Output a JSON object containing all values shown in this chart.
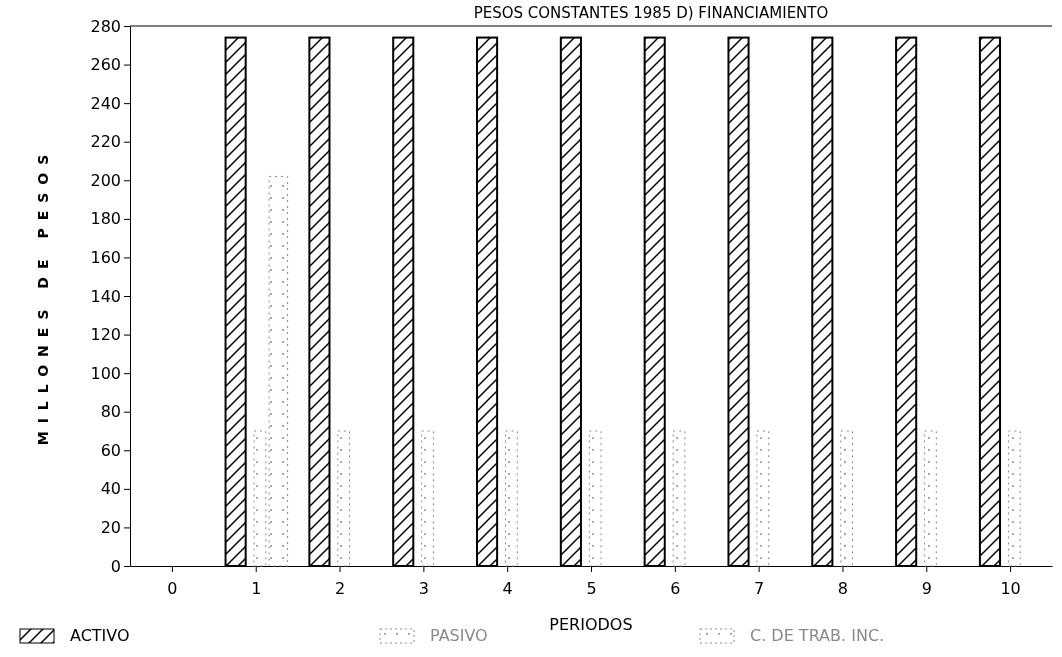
{
  "chart_data": {
    "type": "bar",
    "title": "PESOS CONSTANTES 1985 D) FINANCIAMIENTO",
    "xlabel": "PERIODOS",
    "ylabel": "MILLONES DE PESOS",
    "categories": [
      "0",
      "1",
      "2",
      "3",
      "4",
      "5",
      "6",
      "7",
      "8",
      "9",
      "10"
    ],
    "series": [
      {
        "name": "ACTIVO",
        "color": "#000000",
        "values": [
          0,
          274,
          274,
          274,
          274,
          274,
          274,
          274,
          274,
          274,
          274
        ]
      },
      {
        "name": "PASIVO",
        "color": "#8a8a8a",
        "values": [
          0,
          70,
          70,
          70,
          70,
          70,
          70,
          70,
          70,
          70,
          70
        ]
      },
      {
        "name": "C. DE TRAB. INC.",
        "color": "#8a8a8a",
        "values": [
          0,
          202,
          0,
          0,
          0,
          0,
          0,
          0,
          0,
          0,
          0
        ]
      }
    ],
    "ylim": [
      0,
      280
    ],
    "yticks": [
      0,
      20,
      40,
      60,
      80,
      100,
      120,
      140,
      160,
      180,
      200,
      220,
      240,
      260,
      280
    ],
    "legend": "bottom"
  }
}
